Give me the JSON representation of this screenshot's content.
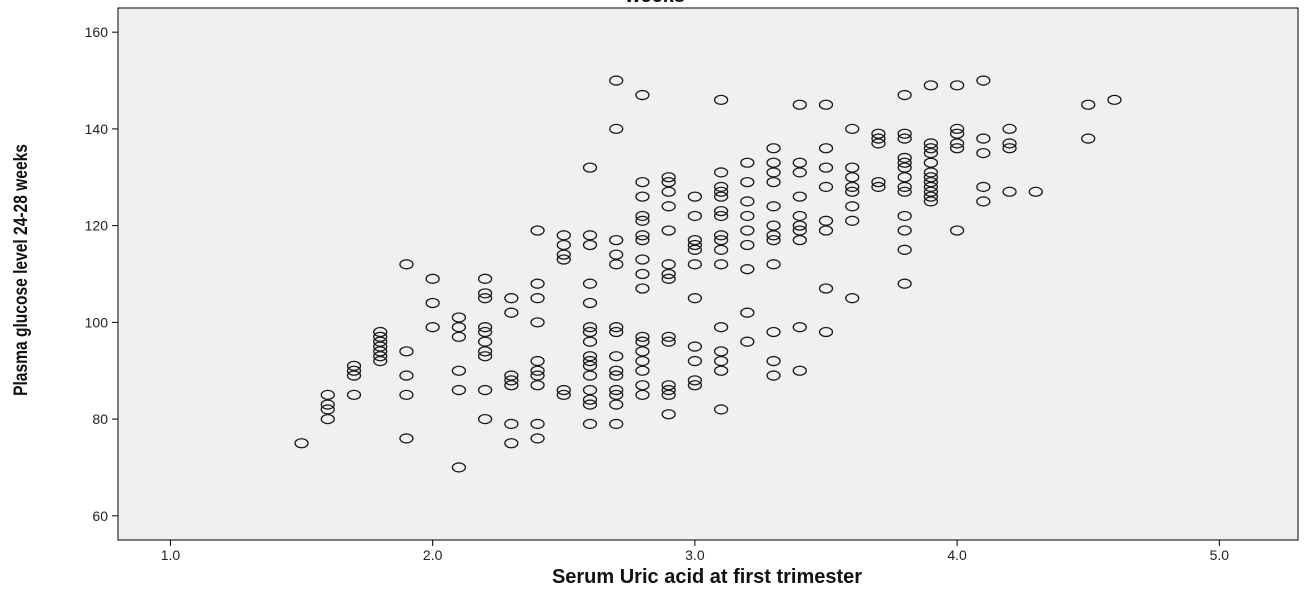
{
  "chart_data": {
    "type": "scatter",
    "title": "weeks",
    "xlabel": "Serum Uric acid at first trimester",
    "ylabel": "Plasma glucose level 24-28 weeks",
    "xlim": [
      0.8,
      5.3
    ],
    "ylim": [
      55,
      165
    ],
    "x_ticks": [
      "1.0",
      "2.0",
      "3.0",
      "4.0",
      "5.0"
    ],
    "y_ticks": [
      "60",
      "80",
      "100",
      "120",
      "140",
      "160"
    ],
    "x_tick_values": [
      1.0,
      2.0,
      3.0,
      4.0,
      5.0
    ],
    "y_tick_values": [
      60,
      80,
      100,
      120,
      140,
      160
    ],
    "grid": false,
    "marker": "open circle",
    "colors": {
      "plot_background": "#f0f0f0",
      "marker_stroke": "#1a1a1a",
      "axis": "#000000"
    },
    "points": [
      [
        1.5,
        75
      ],
      [
        1.6,
        85
      ],
      [
        1.6,
        83
      ],
      [
        1.6,
        82
      ],
      [
        1.6,
        80
      ],
      [
        1.7,
        91
      ],
      [
        1.7,
        90
      ],
      [
        1.7,
        89
      ],
      [
        1.7,
        85
      ],
      [
        1.8,
        98
      ],
      [
        1.8,
        97
      ],
      [
        1.8,
        96
      ],
      [
        1.8,
        95
      ],
      [
        1.8,
        94
      ],
      [
        1.8,
        93
      ],
      [
        1.8,
        92
      ],
      [
        1.9,
        112
      ],
      [
        1.9,
        94
      ],
      [
        1.9,
        89
      ],
      [
        1.9,
        85
      ],
      [
        1.9,
        76
      ],
      [
        2.0,
        109
      ],
      [
        2.0,
        104
      ],
      [
        2.0,
        99
      ],
      [
        2.1,
        101
      ],
      [
        2.1,
        99
      ],
      [
        2.1,
        97
      ],
      [
        2.1,
        90
      ],
      [
        2.1,
        86
      ],
      [
        2.1,
        70
      ],
      [
        2.2,
        109
      ],
      [
        2.2,
        106
      ],
      [
        2.2,
        105
      ],
      [
        2.2,
        99
      ],
      [
        2.2,
        98
      ],
      [
        2.2,
        96
      ],
      [
        2.2,
        94
      ],
      [
        2.2,
        93
      ],
      [
        2.2,
        86
      ],
      [
        2.2,
        80
      ],
      [
        2.3,
        105
      ],
      [
        2.3,
        102
      ],
      [
        2.3,
        89
      ],
      [
        2.3,
        88
      ],
      [
        2.3,
        87
      ],
      [
        2.3,
        79
      ],
      [
        2.3,
        75
      ],
      [
        2.4,
        119
      ],
      [
        2.4,
        108
      ],
      [
        2.4,
        105
      ],
      [
        2.4,
        100
      ],
      [
        2.4,
        92
      ],
      [
        2.4,
        90
      ],
      [
        2.4,
        89
      ],
      [
        2.4,
        87
      ],
      [
        2.4,
        79
      ],
      [
        2.4,
        76
      ],
      [
        2.5,
        118
      ],
      [
        2.5,
        116
      ],
      [
        2.5,
        114
      ],
      [
        2.5,
        113
      ],
      [
        2.5,
        86
      ],
      [
        2.5,
        85
      ],
      [
        2.6,
        132
      ],
      [
        2.6,
        118
      ],
      [
        2.6,
        116
      ],
      [
        2.6,
        108
      ],
      [
        2.6,
        104
      ],
      [
        2.6,
        99
      ],
      [
        2.6,
        98
      ],
      [
        2.6,
        96
      ],
      [
        2.6,
        93
      ],
      [
        2.6,
        92
      ],
      [
        2.6,
        91
      ],
      [
        2.6,
        89
      ],
      [
        2.6,
        86
      ],
      [
        2.6,
        84
      ],
      [
        2.6,
        83
      ],
      [
        2.6,
        79
      ],
      [
        2.7,
        150
      ],
      [
        2.7,
        140
      ],
      [
        2.7,
        117
      ],
      [
        2.7,
        114
      ],
      [
        2.7,
        112
      ],
      [
        2.7,
        99
      ],
      [
        2.7,
        98
      ],
      [
        2.7,
        93
      ],
      [
        2.7,
        90
      ],
      [
        2.7,
        89
      ],
      [
        2.7,
        86
      ],
      [
        2.7,
        85
      ],
      [
        2.7,
        83
      ],
      [
        2.7,
        79
      ],
      [
        2.8,
        147
      ],
      [
        2.8,
        129
      ],
      [
        2.8,
        126
      ],
      [
        2.8,
        122
      ],
      [
        2.8,
        121
      ],
      [
        2.8,
        118
      ],
      [
        2.8,
        117
      ],
      [
        2.8,
        113
      ],
      [
        2.8,
        110
      ],
      [
        2.8,
        107
      ],
      [
        2.8,
        97
      ],
      [
        2.8,
        96
      ],
      [
        2.8,
        94
      ],
      [
        2.8,
        92
      ],
      [
        2.8,
        90
      ],
      [
        2.8,
        87
      ],
      [
        2.8,
        85
      ],
      [
        2.9,
        130
      ],
      [
        2.9,
        129
      ],
      [
        2.9,
        127
      ],
      [
        2.9,
        124
      ],
      [
        2.9,
        119
      ],
      [
        2.9,
        112
      ],
      [
        2.9,
        110
      ],
      [
        2.9,
        109
      ],
      [
        2.9,
        97
      ],
      [
        2.9,
        96
      ],
      [
        2.9,
        87
      ],
      [
        2.9,
        86
      ],
      [
        2.9,
        85
      ],
      [
        2.9,
        81
      ],
      [
        3.0,
        126
      ],
      [
        3.0,
        122
      ],
      [
        3.0,
        117
      ],
      [
        3.0,
        116
      ],
      [
        3.0,
        115
      ],
      [
        3.0,
        112
      ],
      [
        3.0,
        105
      ],
      [
        3.0,
        95
      ],
      [
        3.0,
        92
      ],
      [
        3.0,
        88
      ],
      [
        3.0,
        87
      ],
      [
        3.1,
        146
      ],
      [
        3.1,
        131
      ],
      [
        3.1,
        128
      ],
      [
        3.1,
        127
      ],
      [
        3.1,
        126
      ],
      [
        3.1,
        123
      ],
      [
        3.1,
        122
      ],
      [
        3.1,
        118
      ],
      [
        3.1,
        117
      ],
      [
        3.1,
        115
      ],
      [
        3.1,
        112
      ],
      [
        3.1,
        99
      ],
      [
        3.1,
        94
      ],
      [
        3.1,
        92
      ],
      [
        3.1,
        90
      ],
      [
        3.1,
        82
      ],
      [
        3.2,
        133
      ],
      [
        3.2,
        129
      ],
      [
        3.2,
        125
      ],
      [
        3.2,
        122
      ],
      [
        3.2,
        119
      ],
      [
        3.2,
        116
      ],
      [
        3.2,
        111
      ],
      [
        3.2,
        102
      ],
      [
        3.2,
        96
      ],
      [
        3.3,
        136
      ],
      [
        3.3,
        133
      ],
      [
        3.3,
        131
      ],
      [
        3.3,
        129
      ],
      [
        3.3,
        124
      ],
      [
        3.3,
        120
      ],
      [
        3.3,
        118
      ],
      [
        3.3,
        117
      ],
      [
        3.3,
        112
      ],
      [
        3.3,
        98
      ],
      [
        3.3,
        92
      ],
      [
        3.3,
        89
      ],
      [
        3.4,
        145
      ],
      [
        3.4,
        133
      ],
      [
        3.4,
        131
      ],
      [
        3.4,
        126
      ],
      [
        3.4,
        122
      ],
      [
        3.4,
        120
      ],
      [
        3.4,
        119
      ],
      [
        3.4,
        117
      ],
      [
        3.4,
        99
      ],
      [
        3.4,
        90
      ],
      [
        3.5,
        145
      ],
      [
        3.5,
        136
      ],
      [
        3.5,
        132
      ],
      [
        3.5,
        128
      ],
      [
        3.5,
        121
      ],
      [
        3.5,
        119
      ],
      [
        3.5,
        107
      ],
      [
        3.5,
        98
      ],
      [
        3.6,
        140
      ],
      [
        3.6,
        132
      ],
      [
        3.6,
        130
      ],
      [
        3.6,
        128
      ],
      [
        3.6,
        127
      ],
      [
        3.6,
        124
      ],
      [
        3.6,
        121
      ],
      [
        3.6,
        105
      ],
      [
        3.7,
        139
      ],
      [
        3.7,
        138
      ],
      [
        3.7,
        137
      ],
      [
        3.7,
        129
      ],
      [
        3.7,
        128
      ],
      [
        3.8,
        147
      ],
      [
        3.8,
        139
      ],
      [
        3.8,
        138
      ],
      [
        3.8,
        134
      ],
      [
        3.8,
        133
      ],
      [
        3.8,
        132
      ],
      [
        3.8,
        130
      ],
      [
        3.8,
        128
      ],
      [
        3.8,
        127
      ],
      [
        3.8,
        122
      ],
      [
        3.8,
        119
      ],
      [
        3.8,
        115
      ],
      [
        3.8,
        108
      ],
      [
        3.9,
        149
      ],
      [
        3.9,
        137
      ],
      [
        3.9,
        136
      ],
      [
        3.9,
        135
      ],
      [
        3.9,
        133
      ],
      [
        3.9,
        131
      ],
      [
        3.9,
        130
      ],
      [
        3.9,
        129
      ],
      [
        3.9,
        128
      ],
      [
        3.9,
        127
      ],
      [
        3.9,
        126
      ],
      [
        3.9,
        125
      ],
      [
        4.0,
        149
      ],
      [
        4.0,
        140
      ],
      [
        4.0,
        139
      ],
      [
        4.0,
        137
      ],
      [
        4.0,
        136
      ],
      [
        4.0,
        119
      ],
      [
        4.1,
        150
      ],
      [
        4.1,
        138
      ],
      [
        4.1,
        135
      ],
      [
        4.1,
        128
      ],
      [
        4.1,
        125
      ],
      [
        4.2,
        140
      ],
      [
        4.2,
        137
      ],
      [
        4.2,
        136
      ],
      [
        4.2,
        127
      ],
      [
        4.3,
        127
      ],
      [
        4.5,
        145
      ],
      [
        4.5,
        138
      ],
      [
        4.6,
        146
      ]
    ]
  }
}
